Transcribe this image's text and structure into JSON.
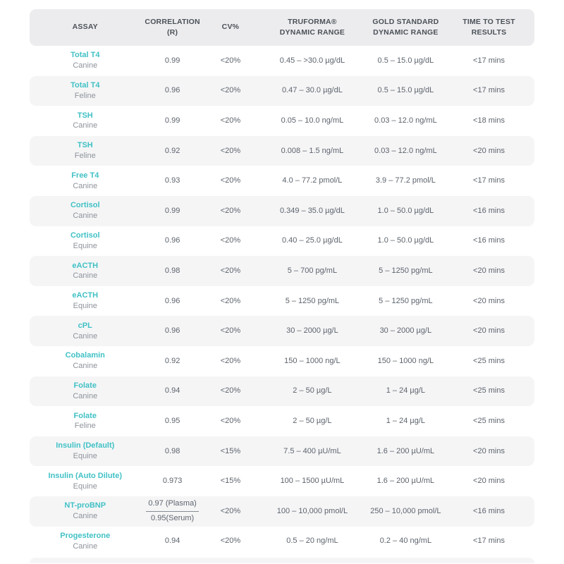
{
  "table": {
    "columns": [
      {
        "label": "ASSAY"
      },
      {
        "label": "CORRELATION (R)"
      },
      {
        "label": "CV%"
      },
      {
        "label": "TRUFORMA®\nDYNAMIC RANGE"
      },
      {
        "label": "GOLD STANDARD\nDYNAMIC RANGE"
      },
      {
        "label": "TIME TO TEST\nRESULTS"
      }
    ],
    "rows": [
      {
        "assay": "Total T4",
        "species": "Canine",
        "correlation": "0.99",
        "correlation2": "",
        "cv": "<20%",
        "truforma_range": "0.45 – >30.0 µg/dL",
        "gold_standard_range": "0.5 – 15.0 µg/dL",
        "time_to_result": "<17 mins"
      },
      {
        "assay": "Total T4",
        "species": "Feline",
        "correlation": "0.96",
        "correlation2": "",
        "cv": "<20%",
        "truforma_range": "0.47 – 30.0 µg/dL",
        "gold_standard_range": "0.5 – 15.0 µg/dL",
        "time_to_result": "<17 mins"
      },
      {
        "assay": "TSH",
        "species": "Canine",
        "correlation": "0.99",
        "correlation2": "",
        "cv": "<20%",
        "truforma_range": "0.05 – 10.0 ng/mL",
        "gold_standard_range": "0.03 – 12.0 ng/mL",
        "time_to_result": "<18 mins"
      },
      {
        "assay": "TSH",
        "species": "Feline",
        "correlation": "0.92",
        "correlation2": "",
        "cv": "<20%",
        "truforma_range": "0.008 – 1.5 ng/mL",
        "gold_standard_range": "0.03 – 12.0 ng/mL",
        "time_to_result": "<20 mins"
      },
      {
        "assay": "Free T4",
        "species": "Canine",
        "correlation": "0.93",
        "correlation2": "",
        "cv": "<20%",
        "truforma_range": "4.0 – 77.2 pmol/L",
        "gold_standard_range": "3.9 – 77.2 pmol/L",
        "time_to_result": "<17 mins"
      },
      {
        "assay": "Cortisol",
        "species": "Canine",
        "correlation": "0.99",
        "correlation2": "",
        "cv": "<20%",
        "truforma_range": "0.349 – 35.0 µg/dL",
        "gold_standard_range": "1.0 – 50.0 µg/dL",
        "time_to_result": "<16 mins"
      },
      {
        "assay": "Cortisol",
        "species": "Equine",
        "correlation": "0.96",
        "correlation2": "",
        "cv": "<20%",
        "truforma_range": "0.40 – 25.0 µg/dL",
        "gold_standard_range": "1.0 – 50.0 µg/dL",
        "time_to_result": "<16 mins"
      },
      {
        "assay": "eACTH",
        "species": "Canine",
        "correlation": "0.98",
        "correlation2": "",
        "cv": "<20%",
        "truforma_range": "5 – 700 pg/mL",
        "gold_standard_range": "5 – 1250 pg/mL",
        "time_to_result": "<20 mins"
      },
      {
        "assay": "eACTH",
        "species": "Equine",
        "correlation": "0.96",
        "correlation2": "",
        "cv": "<20%",
        "truforma_range": "5 – 1250 pg/mL",
        "gold_standard_range": "5 – 1250 pg/mL",
        "time_to_result": "<20 mins"
      },
      {
        "assay": "cPL",
        "species": "Canine",
        "correlation": "0.96",
        "correlation2": "",
        "cv": "<20%",
        "truforma_range": "30 – 2000 µg/L",
        "gold_standard_range": "30 – 2000 µg/L",
        "time_to_result": "<20 mins"
      },
      {
        "assay": "Cobalamin",
        "species": "Canine",
        "correlation": "0.92",
        "correlation2": "",
        "cv": "<20%",
        "truforma_range": "150 – 1000 ng/L",
        "gold_standard_range": "150 – 1000 ng/L",
        "time_to_result": "<25 mins"
      },
      {
        "assay": "Folate",
        "species": "Canine",
        "correlation": "0.94",
        "correlation2": "",
        "cv": "<20%",
        "truforma_range": "2 – 50 µg/L",
        "gold_standard_range": "1 – 24 µg/L",
        "time_to_result": "<25 mins"
      },
      {
        "assay": "Folate",
        "species": "Feline",
        "correlation": "0.95",
        "correlation2": "",
        "cv": "<20%",
        "truforma_range": "2 – 50 µg/L",
        "gold_standard_range": "1 – 24 µg/L",
        "time_to_result": "<25 mins"
      },
      {
        "assay": "Insulin (Default)",
        "species": "Equine",
        "correlation": "0.98",
        "correlation2": "",
        "cv": "<15%",
        "truforma_range": "7.5 – 400 µU/mL",
        "gold_standard_range": "1.6 – 200 µU/mL",
        "time_to_result": "<20 mins"
      },
      {
        "assay": "Insulin (Auto Dilute)",
        "species": "Equine",
        "correlation": "0.973",
        "correlation2": "",
        "cv": "<15%",
        "truforma_range": "100 – 1500 µU/mL",
        "gold_standard_range": "1.6 – 200 µU/mL",
        "time_to_result": "<20 mins"
      },
      {
        "assay": "NT-proBNP",
        "species": "Canine",
        "correlation": "0.97 (Plasma)",
        "correlation2": "0.95(Serum)",
        "cv": "<20%",
        "truforma_range": "100 – 10,000 pmol/L",
        "gold_standard_range": "250 – 10,000 pmol/L",
        "time_to_result": "<16 mins"
      },
      {
        "assay": "Progesterone",
        "species": "Canine",
        "correlation": "0.94",
        "correlation2": "",
        "cv": "<20%",
        "truforma_range": "0.5 – 20 ng/mL",
        "gold_standard_range": "0.2 – 40 ng/mL",
        "time_to_result": "<17 mins"
      }
    ]
  },
  "colors": {
    "accent_teal": "#41c1c5",
    "header_bg": "#ececee",
    "stripe_bg": "#f5f5f6",
    "header_text": "#4b5158",
    "body_text": "#5d646d",
    "species_text": "#8d939b"
  }
}
